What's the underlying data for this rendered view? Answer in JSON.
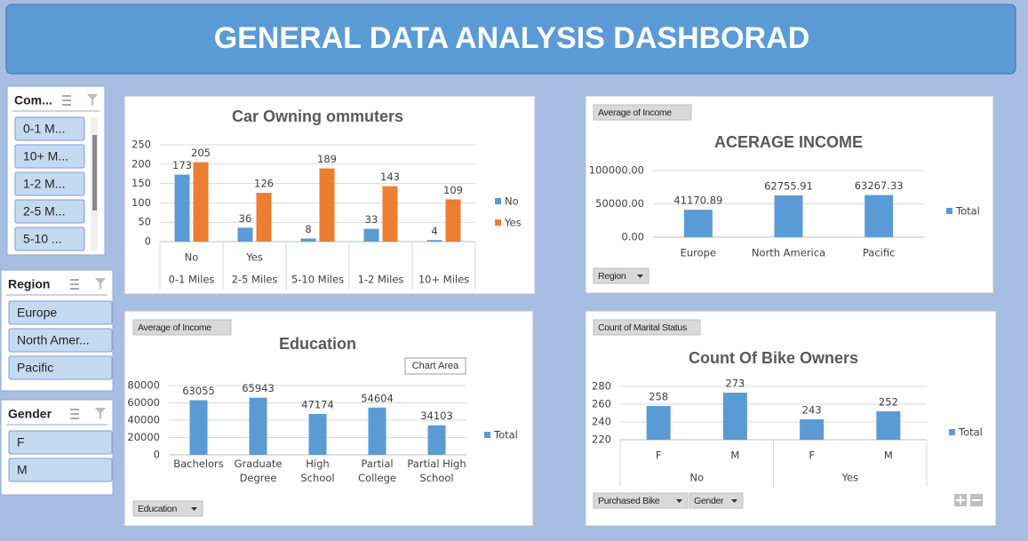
{
  "title": "GENERAL DATA ANALYSIS DASHBORAD",
  "slicers": [
    {
      "title": "Com...",
      "items": [
        "0-1 M...",
        "10+ M...",
        "1-2 M...",
        "2-5 M...",
        "5-10 ..."
      ]
    },
    {
      "title": "Region",
      "items": [
        "Europe",
        "North Amer...",
        "Pacific"
      ]
    },
    {
      "title": "Gender",
      "items": [
        "F",
        "M"
      ]
    }
  ],
  "chart_data": [
    {
      "type": "bar",
      "title": "Car Owning ommuters",
      "categories": [
        "0-1 Miles",
        "2-5 Miles",
        "5-10 Miles",
        "1-2 Miles",
        "10+ Miles"
      ],
      "sub_categories": [
        "No",
        "Yes",
        null,
        null,
        null
      ],
      "series": [
        {
          "name": "No",
          "color": "#5b9bd5",
          "values": [
            173,
            36,
            8,
            33,
            4
          ]
        },
        {
          "name": "Yes",
          "color": "#ed7d31",
          "values": [
            205,
            126,
            189,
            143,
            109
          ]
        }
      ],
      "ylim": [
        0,
        250
      ],
      "yticks": [
        0,
        50,
        100,
        150,
        200,
        250
      ],
      "grid": true,
      "legend": "right"
    },
    {
      "type": "bar",
      "title": "ACERAGE INCOME",
      "field_buttons": [
        "Average of Income",
        "Region"
      ],
      "categories": [
        "Europe",
        "North America",
        "Pacific"
      ],
      "series": [
        {
          "name": "Total",
          "color": "#5b9bd5",
          "values": [
            41170.89,
            62755.91,
            63267.33
          ]
        }
      ],
      "ylim": [
        0,
        100000
      ],
      "yticks": [
        {
          "value": 0,
          "label": "0.00"
        },
        {
          "value": 50000,
          "label": "50000.00"
        },
        {
          "value": 100000,
          "label": "100000.00"
        }
      ],
      "grid": true,
      "legend": "right"
    },
    {
      "type": "bar",
      "title": "Education",
      "field_buttons": [
        "Average of Income",
        "Education"
      ],
      "tooltip": "Chart Area",
      "categories": [
        "Bachelors",
        "Graduate Degree",
        "High School",
        "Partial College",
        "Partial High School"
      ],
      "series": [
        {
          "name": "Total",
          "color": "#5b9bd5",
          "values": [
            63055,
            65943,
            47174,
            54604,
            34103
          ]
        }
      ],
      "ylim": [
        0,
        80000
      ],
      "yticks": [
        0,
        20000,
        40000,
        60000,
        80000
      ],
      "grid": true,
      "legend": "right"
    },
    {
      "type": "bar",
      "title": "Count Of Bike Owners",
      "field_buttons": [
        "Count of Marital Status",
        "Purchased Bike",
        "Gender"
      ],
      "categories": [
        "F",
        "M",
        "F",
        "M"
      ],
      "groups": [
        "No",
        "Yes"
      ],
      "series": [
        {
          "name": "Total",
          "color": "#5b9bd5",
          "values": [
            258,
            273,
            243,
            252
          ]
        }
      ],
      "ylim": [
        220,
        280
      ],
      "yticks": [
        220,
        240,
        260,
        280
      ],
      "grid": true,
      "legend": "right"
    }
  ]
}
